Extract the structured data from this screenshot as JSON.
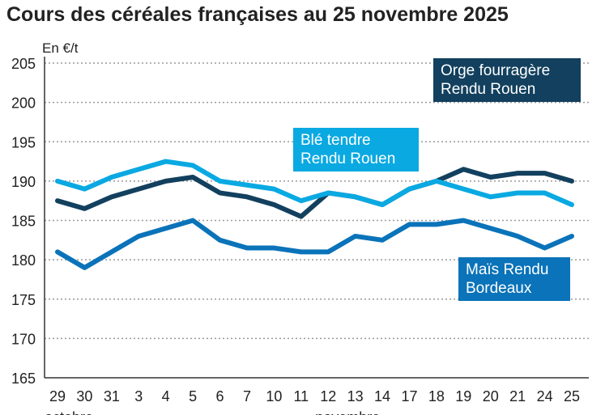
{
  "title": "Cours des céréales françaises au 25 novembre 2025",
  "chart_data": {
    "type": "line",
    "title": "Cours des céréales françaises au 25 novembre 2025",
    "ylabel": "En €/t",
    "xlabel": "",
    "ylim": [
      165,
      205
    ],
    "yticks": [
      165,
      170,
      175,
      180,
      185,
      190,
      195,
      200,
      205
    ],
    "grid": true,
    "categories": [
      "29",
      "30",
      "31",
      "3",
      "4",
      "5",
      "6",
      "7",
      "10",
      "11",
      "12",
      "13",
      "14",
      "17",
      "18",
      "19",
      "20",
      "21",
      "24",
      "25"
    ],
    "month_labels": [
      {
        "label": "octobre",
        "start_index": 0
      },
      {
        "label": "novembre",
        "start_index": 10
      }
    ],
    "series": [
      {
        "name": "Orge fourragère Rendu Rouen",
        "color": "#12405e",
        "values": [
          187.5,
          186.5,
          188,
          189,
          190,
          190.5,
          188.5,
          188,
          187,
          185.5,
          188.5,
          188,
          187,
          189,
          190,
          191.5,
          190.5,
          191,
          191,
          190
        ]
      },
      {
        "name": "Blé tendre Rendu Rouen",
        "color": "#0aa9e2",
        "values": [
          190,
          189,
          190.5,
          191.5,
          192.5,
          192,
          190,
          189.5,
          189,
          187.5,
          188.5,
          188,
          187,
          189,
          190,
          189,
          188,
          188.5,
          188.5,
          187
        ]
      },
      {
        "name": "Maïs Rendu Bordeaux",
        "color": "#0a73b9",
        "values": [
          181,
          179,
          181,
          183,
          184,
          185,
          182.5,
          181.5,
          181.5,
          181,
          181,
          183,
          182.5,
          184.5,
          184.5,
          185,
          184,
          183,
          181.5,
          183
        ]
      }
    ]
  }
}
